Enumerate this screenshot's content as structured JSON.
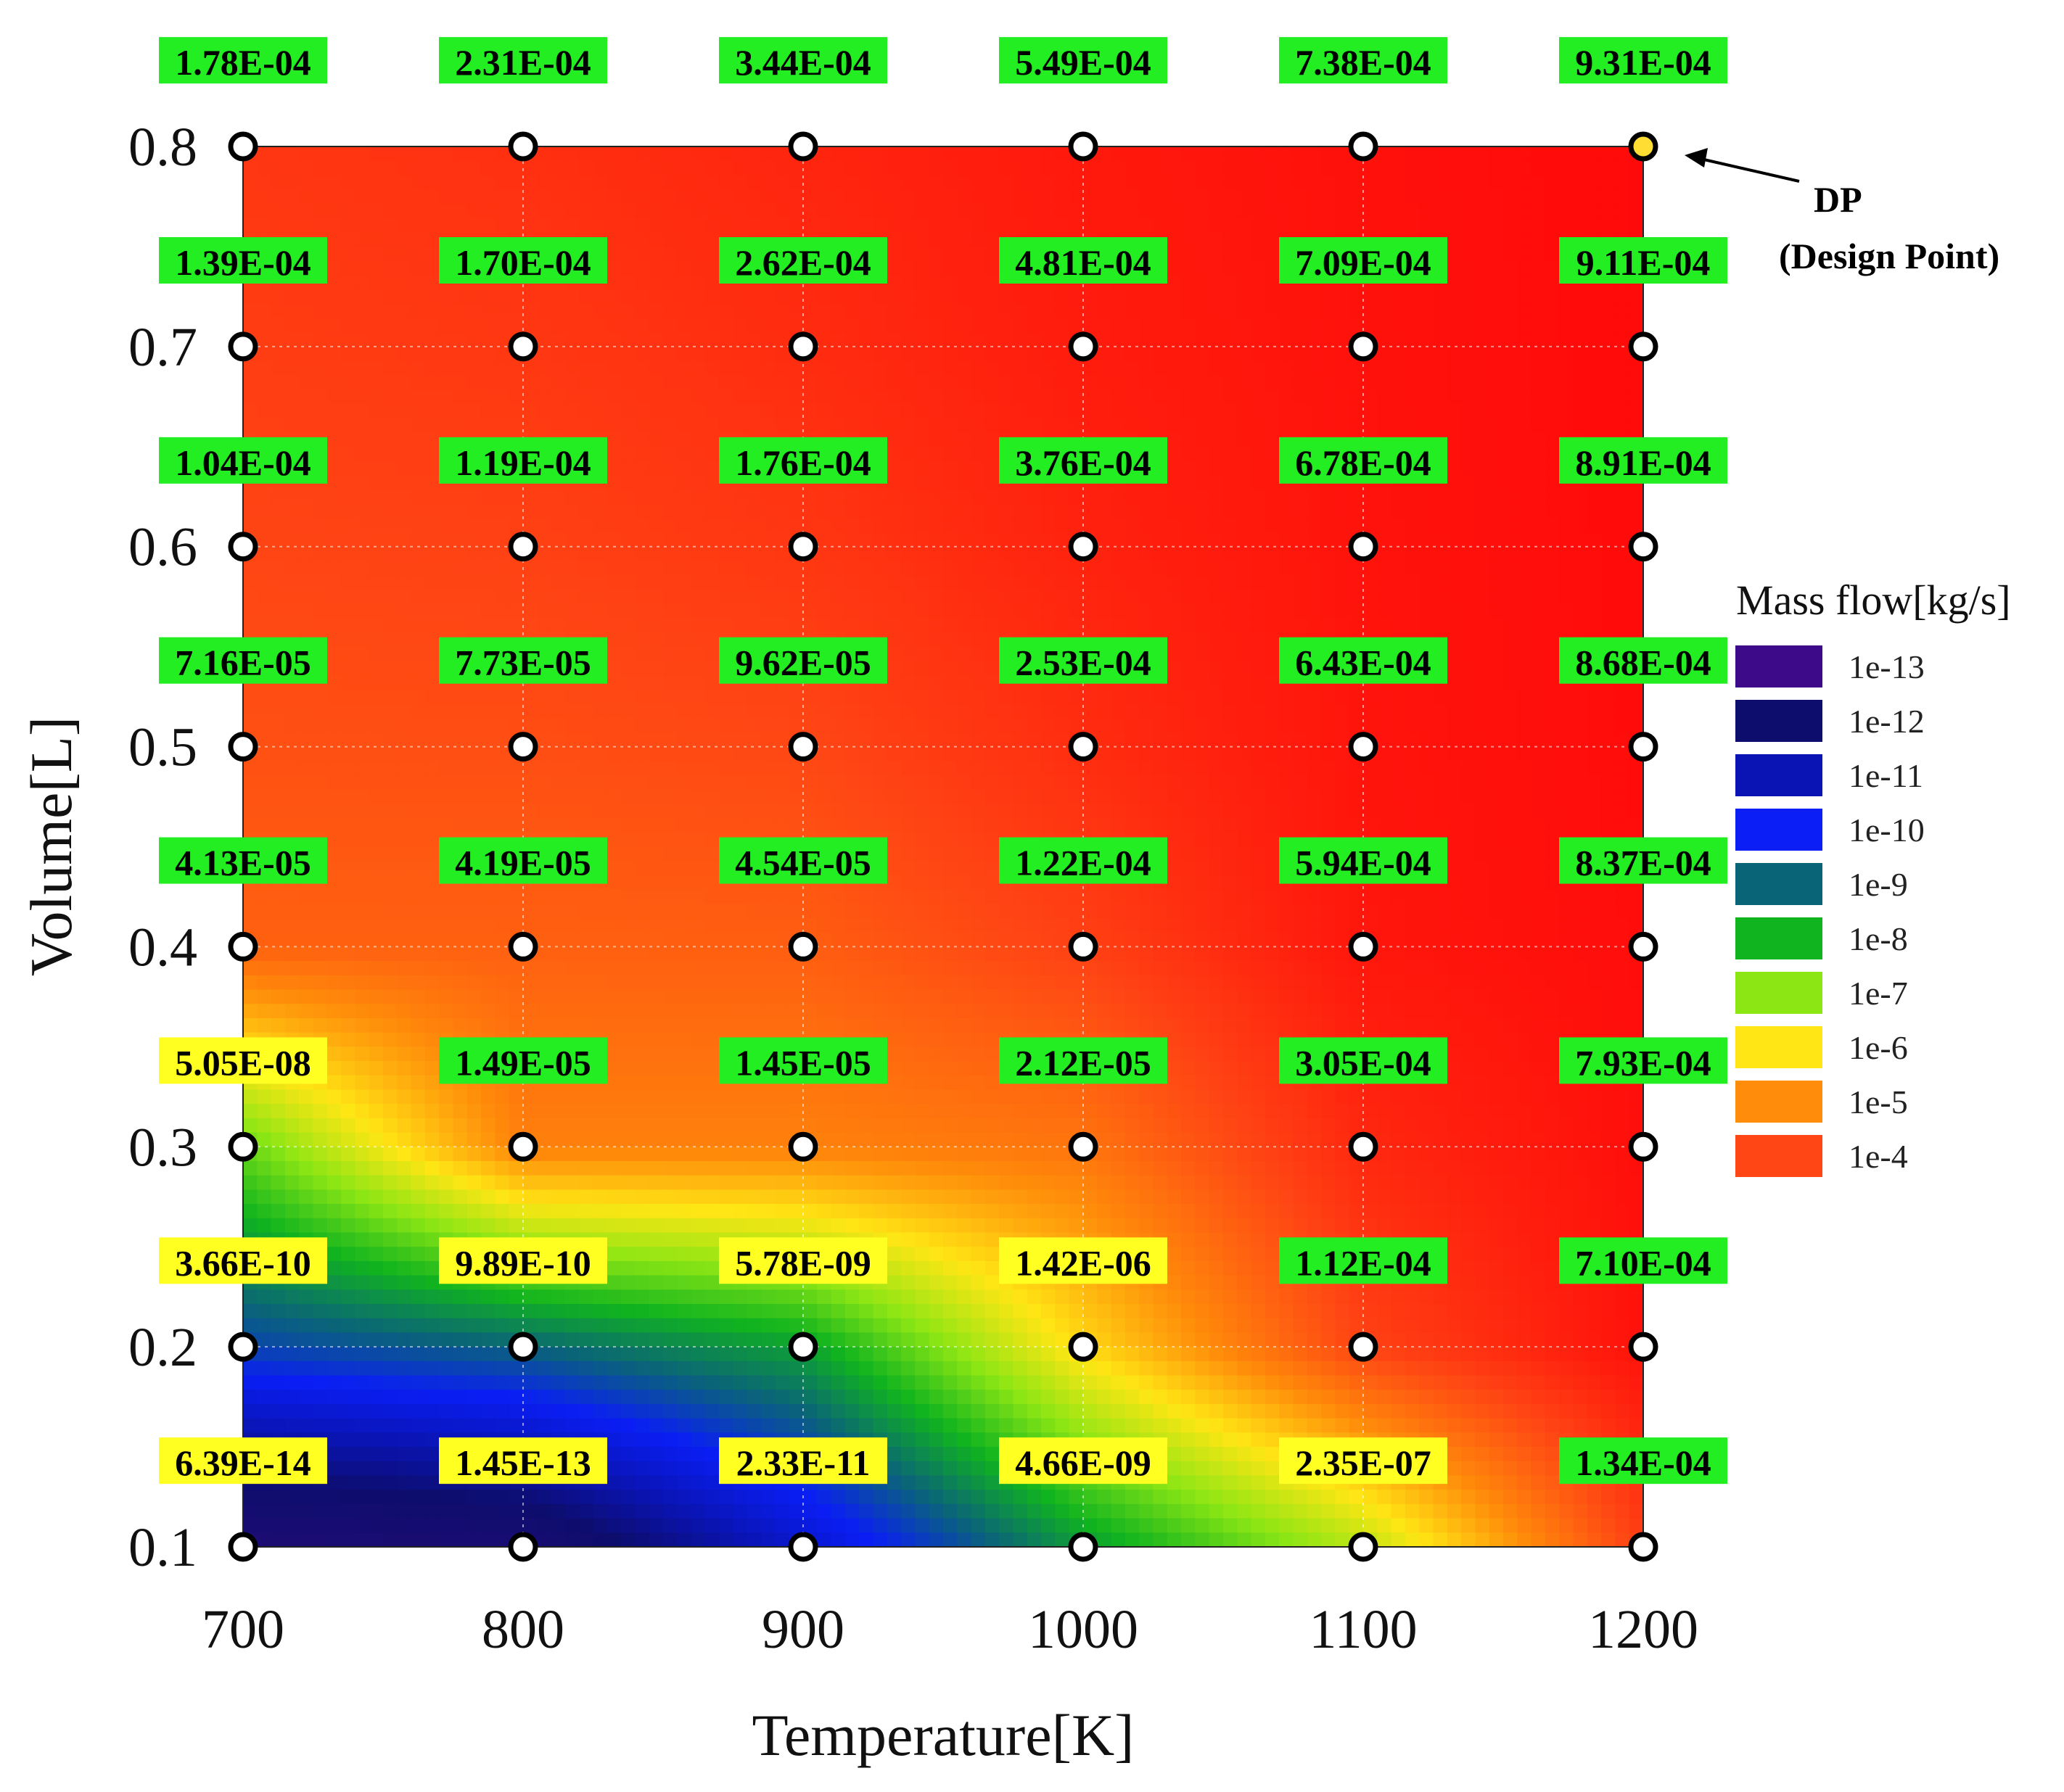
{
  "chart_data": {
    "type": "heatmap",
    "subtype": "filled-contour",
    "xlabel": "Temperature[K]",
    "ylabel": "Volume[L]",
    "x": [
      700,
      800,
      900,
      1000,
      1100,
      1200
    ],
    "y": [
      0.1,
      0.2,
      0.3,
      0.4,
      0.5,
      0.6,
      0.7,
      0.8
    ],
    "x_tick_labels": [
      "700",
      "800",
      "900",
      "1000",
      "1100",
      "1200"
    ],
    "y_tick_labels": [
      "0.1",
      "0.2",
      "0.3",
      "0.4",
      "0.5",
      "0.6",
      "0.7",
      "0.8"
    ],
    "xlim": [
      700,
      1200
    ],
    "ylim": [
      0.1,
      0.8
    ],
    "grid": true,
    "z_labels": [
      [
        "6.39E-14",
        "1.45E-13",
        "2.33E-11",
        "4.66E-09",
        "2.35E-07",
        "1.34E-04"
      ],
      [
        "3.66E-10",
        "9.89E-10",
        "5.78E-09",
        "1.42E-06",
        "1.12E-04",
        "7.10E-04"
      ],
      [
        "5.05E-08",
        "1.49E-05",
        "1.45E-05",
        "2.12E-05",
        "3.05E-04",
        "7.93E-04"
      ],
      [
        "4.13E-05",
        "4.19E-05",
        "4.54E-05",
        "1.22E-04",
        "5.94E-04",
        "8.37E-04"
      ],
      [
        "7.16E-05",
        "7.73E-05",
        "9.62E-05",
        "2.53E-04",
        "6.43E-04",
        "8.68E-04"
      ],
      [
        "1.04E-04",
        "1.19E-04",
        "1.76E-04",
        "3.76E-04",
        "6.78E-04",
        "8.91E-04"
      ],
      [
        "1.39E-04",
        "1.70E-04",
        "2.62E-04",
        "4.81E-04",
        "7.09E-04",
        "9.11E-04"
      ],
      [
        "1.78E-04",
        "2.31E-04",
        "3.44E-04",
        "5.49E-04",
        "7.38E-04",
        "9.31E-04"
      ]
    ],
    "z_values": [
      [
        6.39e-14,
        1.45e-13,
        2.33e-11,
        4.66e-09,
        2.35e-07,
        0.000134
      ],
      [
        3.66e-10,
        9.89e-10,
        5.78e-09,
        1.42e-06,
        0.000112,
        0.00071
      ],
      [
        5.05e-08,
        1.49e-05,
        1.45e-05,
        2.12e-05,
        0.000305,
        0.000793
      ],
      [
        4.13e-05,
        4.19e-05,
        4.54e-05,
        0.000122,
        0.000594,
        0.000837
      ],
      [
        7.16e-05,
        7.73e-05,
        9.62e-05,
        0.000253,
        0.000643,
        0.000868
      ],
      [
        0.000104,
        0.000119,
        0.000176,
        0.000376,
        0.000678,
        0.000891
      ],
      [
        0.000139,
        0.00017,
        0.000262,
        0.000481,
        0.000709,
        0.000911
      ],
      [
        0.000178,
        0.000231,
        0.000344,
        0.000549,
        0.000738,
        0.000931
      ]
    ],
    "label_highlight_colors": {
      "high": "#22ee22",
      "low": "#ffff22"
    },
    "label_highlight_threshold": 1e-05,
    "legend": {
      "title": "Mass flow[kg/s]",
      "placement": "right",
      "entries": [
        {
          "label": "1e-13",
          "color": "#3d0a8a"
        },
        {
          "label": "1e-12",
          "color": "#0d0d6e"
        },
        {
          "label": "1e-11",
          "color": "#0a14b4"
        },
        {
          "label": "1e-10",
          "color": "#0a1ef5"
        },
        {
          "label": "1e-9",
          "color": "#0a6478"
        },
        {
          "label": "1e-8",
          "color": "#10b41e"
        },
        {
          "label": "1e-7",
          "color": "#8ce614"
        },
        {
          "label": "1e-6",
          "color": "#ffe614"
        },
        {
          "label": "1e-5",
          "color": "#ff8c0a"
        },
        {
          "label": "1e-4",
          "color": "#ff4614"
        }
      ]
    },
    "colormap": [
      {
        "log": -14,
        "color": "#3d0a8a"
      },
      {
        "log": -13,
        "color": "#1a0c72"
      },
      {
        "log": -12,
        "color": "#0d0d6e"
      },
      {
        "log": -11,
        "color": "#0a14b4"
      },
      {
        "log": -10,
        "color": "#0a1ef5"
      },
      {
        "log": -9,
        "color": "#0a6478"
      },
      {
        "log": -8,
        "color": "#10b41e"
      },
      {
        "log": -7,
        "color": "#8ce614"
      },
      {
        "log": -6,
        "color": "#ffe614"
      },
      {
        "log": -5,
        "color": "#ff8c0a"
      },
      {
        "log": -4,
        "color": "#ff4614"
      },
      {
        "log": -3.03,
        "color": "#ff0a0a"
      }
    ],
    "design_point": {
      "x": 1200,
      "y": 0.8,
      "color": "#ffdd33",
      "label_line1": "DP",
      "label_line2": "(Design Point)"
    }
  }
}
